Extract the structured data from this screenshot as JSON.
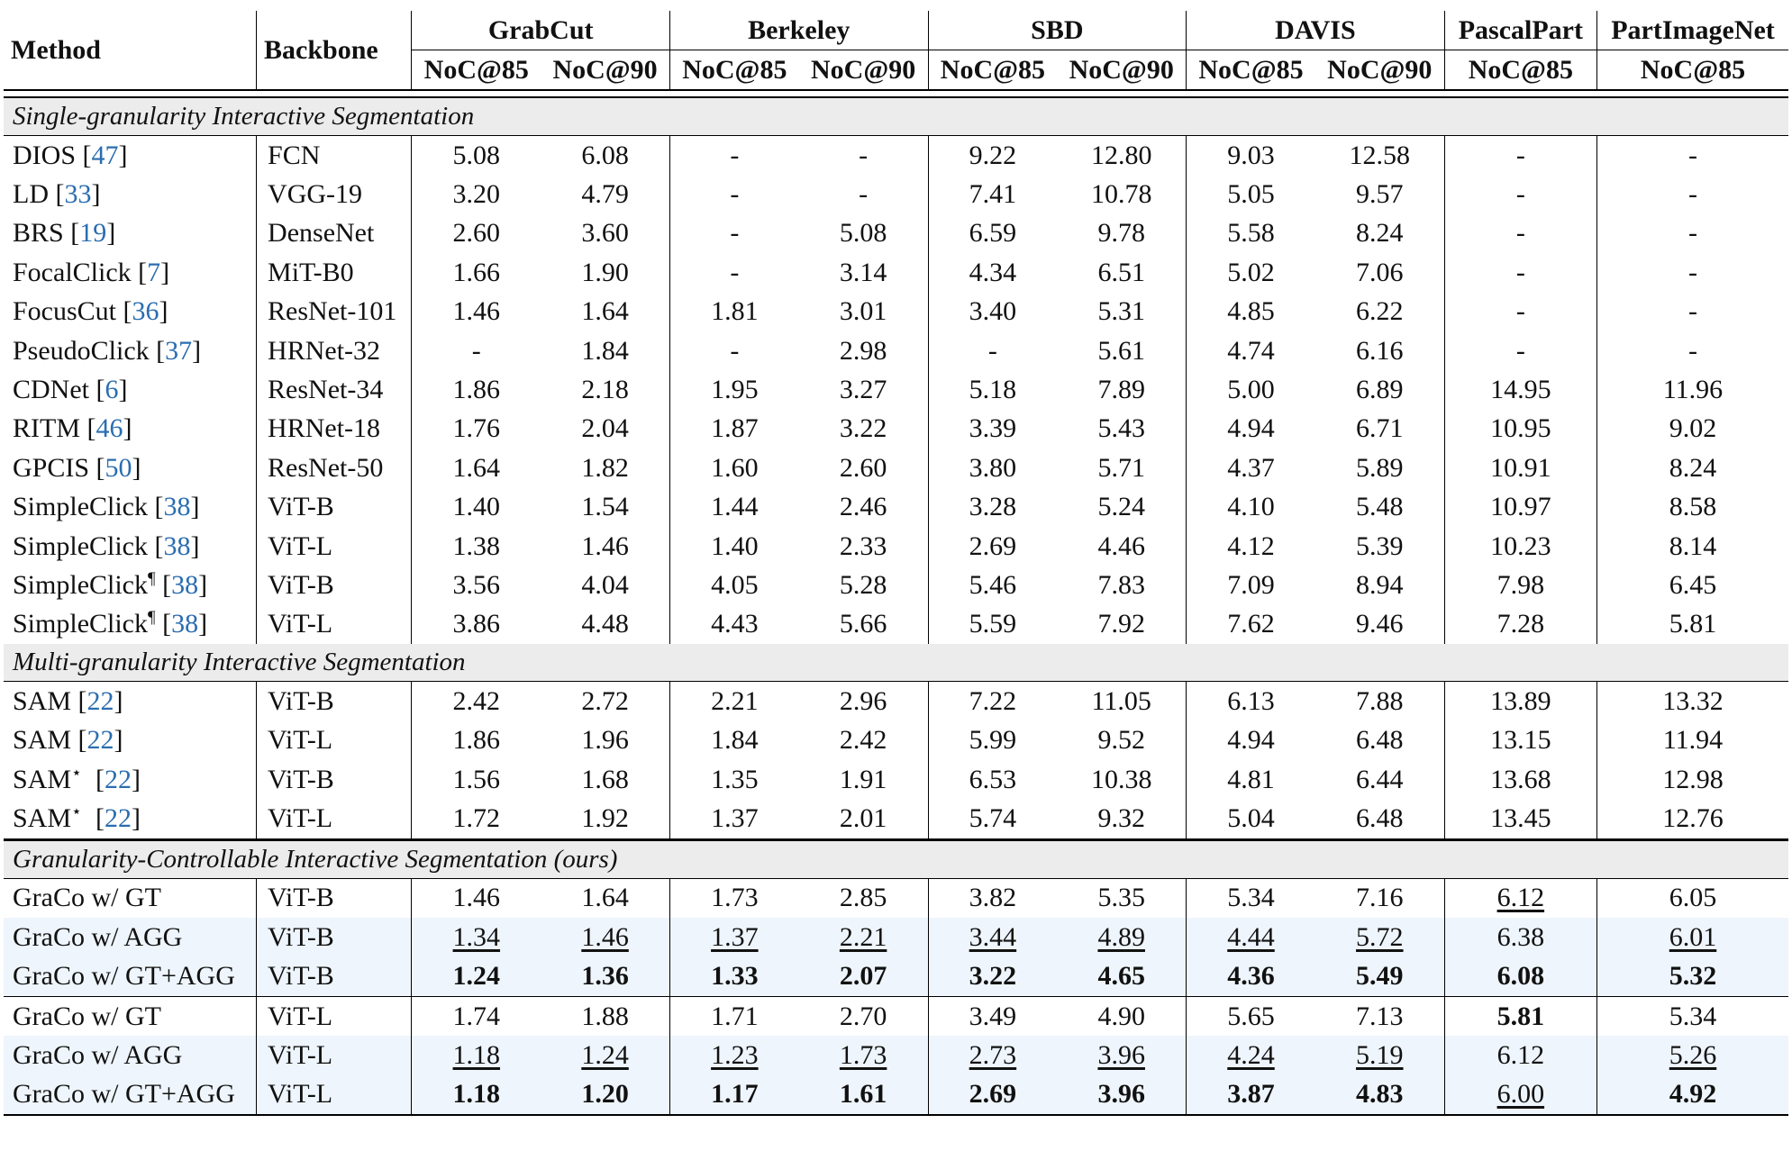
{
  "headers": {
    "method": "Method",
    "backbone": "Backbone",
    "datasets": [
      "GrabCut",
      "Berkeley",
      "SBD",
      "DAVIS",
      "PascalPart",
      "PartImageNet"
    ],
    "metrics": [
      "NoC@85",
      "NoC@90",
      "NoC@85",
      "NoC@90",
      "NoC@85",
      "NoC@90",
      "NoC@85",
      "NoC@90",
      "NoC@85",
      "NoC@85"
    ]
  },
  "sections": [
    {
      "title": "Single-granularity Interactive Segmentation",
      "rows": [
        {
          "method": "DIOS",
          "mark": "",
          "ref": "47",
          "backbone": "FCN",
          "values": [
            "5.08",
            "6.08",
            "-",
            "-",
            "9.22",
            "12.80",
            "9.03",
            "12.58",
            "-",
            "-"
          ]
        },
        {
          "method": "LD",
          "mark": "",
          "ref": "33",
          "backbone": "VGG-19",
          "values": [
            "3.20",
            "4.79",
            "-",
            "-",
            "7.41",
            "10.78",
            "5.05",
            "9.57",
            "-",
            "-"
          ]
        },
        {
          "method": "BRS",
          "mark": "",
          "ref": "19",
          "backbone": "DenseNet",
          "values": [
            "2.60",
            "3.60",
            "-",
            "5.08",
            "6.59",
            "9.78",
            "5.58",
            "8.24",
            "-",
            "-"
          ]
        },
        {
          "method": "FocalClick",
          "mark": "",
          "ref": "7",
          "backbone": "MiT-B0",
          "values": [
            "1.66",
            "1.90",
            "-",
            "3.14",
            "4.34",
            "6.51",
            "5.02",
            "7.06",
            "-",
            "-"
          ]
        },
        {
          "method": "FocusCut",
          "mark": "",
          "ref": "36",
          "backbone": "ResNet-101",
          "values": [
            "1.46",
            "1.64",
            "1.81",
            "3.01",
            "3.40",
            "5.31",
            "4.85",
            "6.22",
            "-",
            "-"
          ]
        },
        {
          "method": "PseudoClick",
          "mark": "",
          "ref": "37",
          "backbone": "HRNet-32",
          "values": [
            "-",
            "1.84",
            "-",
            "2.98",
            "-",
            "5.61",
            "4.74",
            "6.16",
            "-",
            "-"
          ]
        },
        {
          "method": "CDNet",
          "mark": "",
          "ref": "6",
          "backbone": "ResNet-34",
          "values": [
            "1.86",
            "2.18",
            "1.95",
            "3.27",
            "5.18",
            "7.89",
            "5.00",
            "6.89",
            "14.95",
            "11.96"
          ]
        },
        {
          "method": "RITM",
          "mark": "",
          "ref": "46",
          "backbone": "HRNet-18",
          "values": [
            "1.76",
            "2.04",
            "1.87",
            "3.22",
            "3.39",
            "5.43",
            "4.94",
            "6.71",
            "10.95",
            "9.02"
          ]
        },
        {
          "method": "GPCIS",
          "mark": "",
          "ref": "50",
          "backbone": "ResNet-50",
          "values": [
            "1.64",
            "1.82",
            "1.60",
            "2.60",
            "3.80",
            "5.71",
            "4.37",
            "5.89",
            "10.91",
            "8.24"
          ]
        },
        {
          "method": "SimpleClick",
          "mark": "",
          "ref": "38",
          "backbone": "ViT-B",
          "values": [
            "1.40",
            "1.54",
            "1.44",
            "2.46",
            "3.28",
            "5.24",
            "4.10",
            "5.48",
            "10.97",
            "8.58"
          ]
        },
        {
          "method": "SimpleClick",
          "mark": "",
          "ref": "38",
          "backbone": "ViT-L",
          "values": [
            "1.38",
            "1.46",
            "1.40",
            "2.33",
            "2.69",
            "4.46",
            "4.12",
            "5.39",
            "10.23",
            "8.14"
          ]
        },
        {
          "method": "SimpleClick",
          "mark": "¶",
          "ref": "38",
          "backbone": "ViT-B",
          "values": [
            "3.56",
            "4.04",
            "4.05",
            "5.28",
            "5.46",
            "7.83",
            "7.09",
            "8.94",
            "7.98",
            "6.45"
          ]
        },
        {
          "method": "SimpleClick",
          "mark": "¶",
          "ref": "38",
          "backbone": "ViT-L",
          "values": [
            "3.86",
            "4.48",
            "4.43",
            "5.66",
            "5.59",
            "7.92",
            "7.62",
            "9.46",
            "7.28",
            "5.81"
          ]
        }
      ]
    },
    {
      "title": "Multi-granularity Interactive Segmentation",
      "rows": [
        {
          "method": "SAM",
          "mark": "",
          "ref": "22",
          "backbone": "ViT-B",
          "values": [
            "2.42",
            "2.72",
            "2.21",
            "2.96",
            "7.22",
            "11.05",
            "6.13",
            "7.88",
            "13.89",
            "13.32"
          ]
        },
        {
          "method": "SAM",
          "mark": "",
          "ref": "22",
          "backbone": "ViT-L",
          "values": [
            "1.86",
            "1.96",
            "1.84",
            "2.42",
            "5.99",
            "9.52",
            "4.94",
            "6.48",
            "13.15",
            "11.94"
          ]
        },
        {
          "method": "SAM",
          "mark": "⋆",
          "ref": "22",
          "backbone": "ViT-B",
          "values": [
            "1.56",
            "1.68",
            "1.35",
            "1.91",
            "6.53",
            "10.38",
            "4.81",
            "6.44",
            "13.68",
            "12.98"
          ]
        },
        {
          "method": "SAM",
          "mark": "⋆",
          "ref": "22",
          "backbone": "ViT-L",
          "values": [
            "1.72",
            "1.92",
            "1.37",
            "2.01",
            "5.74",
            "9.32",
            "5.04",
            "6.48",
            "13.45",
            "12.76"
          ]
        }
      ]
    },
    {
      "title": "Granularity-Controllable Interactive Segmentation (ours)",
      "rows": [
        {
          "method": "GraCo w/ GT",
          "mark": "",
          "ref": "",
          "backbone": "ViT-B",
          "values": [
            "1.46",
            "1.64",
            "1.73",
            "2.85",
            "3.82",
            "5.35",
            "5.34",
            "7.16",
            "6.12",
            "6.05"
          ]
        },
        {
          "method": "GraCo w/ AGG",
          "mark": "",
          "ref": "",
          "backbone": "ViT-B",
          "values": [
            "1.34",
            "1.46",
            "1.37",
            "2.21",
            "3.44",
            "4.89",
            "4.44",
            "5.72",
            "6.38",
            "6.01"
          ]
        },
        {
          "method": "GraCo w/ GT+AGG",
          "mark": "",
          "ref": "",
          "backbone": "ViT-B",
          "values": [
            "1.24",
            "1.36",
            "1.33",
            "2.07",
            "3.22",
            "4.65",
            "4.36",
            "5.49",
            "6.08",
            "5.32"
          ]
        },
        {
          "method": "GraCo w/ GT",
          "mark": "",
          "ref": "",
          "backbone": "ViT-L",
          "values": [
            "1.74",
            "1.88",
            "1.71",
            "2.70",
            "3.49",
            "4.90",
            "5.65",
            "7.13",
            "5.81",
            "5.34"
          ]
        },
        {
          "method": "GraCo w/ AGG",
          "mark": "",
          "ref": "",
          "backbone": "ViT-L",
          "values": [
            "1.18",
            "1.24",
            "1.23",
            "1.73",
            "2.73",
            "3.96",
            "4.24",
            "5.19",
            "6.12",
            "5.26"
          ]
        },
        {
          "method": "GraCo w/ GT+AGG",
          "mark": "",
          "ref": "",
          "backbone": "ViT-L",
          "values": [
            "1.18",
            "1.20",
            "1.17",
            "1.61",
            "2.69",
            "3.96",
            "3.87",
            "4.83",
            "6.00",
            "4.92"
          ]
        }
      ]
    }
  ]
}
